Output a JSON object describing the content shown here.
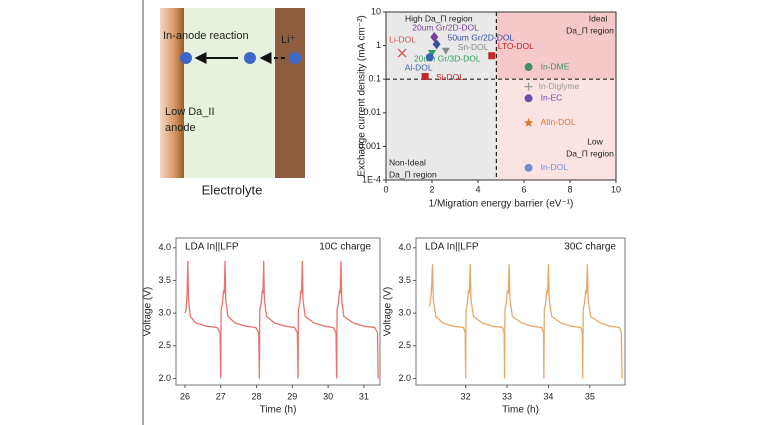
{
  "schematic": {
    "reaction_label": "In-anode reaction",
    "ion_label": "Li⁺",
    "anode_label": [
      "Low Da_II",
      "anode"
    ],
    "electrolyte_label": "Electrolyte"
  },
  "chart_data": [
    {
      "type": "scatter",
      "xlabel": "1/Migration energy barrier (eV⁻¹)",
      "ylabel": "Exchange current density (mA cm⁻²)",
      "xlim": [
        0,
        10
      ],
      "xticks": [
        0,
        2,
        4,
        6,
        8,
        10
      ],
      "ylim": [
        0.0001,
        10
      ],
      "yscale": "log",
      "yticks": [
        {
          "value": 0.0001,
          "label": "1E-4"
        },
        0.001,
        0.01,
        0.1,
        1,
        10
      ],
      "reference_lines": {
        "x": 4.8,
        "y": 0.1
      },
      "annotations": [
        "High Da_Π region",
        "Ideal",
        "Da_Π region",
        "Low",
        "Da_Π region",
        "Non-Ideal",
        "Da_Π region"
      ],
      "series": [
        {
          "name": "Li-DOL",
          "color": "#d9534f",
          "marker": "x",
          "x": [
            0.7
          ],
          "y": [
            0.6
          ]
        },
        {
          "name": "20um Gr/2D-DOL",
          "color": "#7b3fa0",
          "marker": "diamond",
          "x": [
            2.1
          ],
          "y": [
            1.8
          ]
        },
        {
          "name": "50um Gr/2D-DOL",
          "color": "#3a4fa0",
          "marker": "diamond",
          "x": [
            2.2
          ],
          "y": [
            1.1
          ]
        },
        {
          "name": "Sn-DOL",
          "color": "#8a8a8a",
          "marker": "triangle",
          "x": [
            2.6
          ],
          "y": [
            0.7
          ]
        },
        {
          "name": "20um Gr/3D-DOL",
          "color": "#2e9e5e",
          "marker": "triangle",
          "x": [
            2.0
          ],
          "y": [
            0.6
          ]
        },
        {
          "name": "Al-DOL",
          "color": "#3a63b8",
          "marker": "circle",
          "x": [
            1.9
          ],
          "y": [
            0.45
          ]
        },
        {
          "name": "Si-DOL",
          "color": "#c0282d",
          "marker": "square",
          "x": [
            1.7
          ],
          "y": [
            0.12
          ]
        },
        {
          "name": "LTO-DOL",
          "color": "#c0282d",
          "marker": "square",
          "x": [
            4.6
          ],
          "y": [
            0.5
          ]
        },
        {
          "name": "In-DME",
          "color": "#3f8f6a",
          "marker": "circle",
          "x": [
            6.2
          ],
          "y": [
            0.23
          ]
        },
        {
          "name": "In-Diglyme",
          "color": "#9a9a9a",
          "marker": "plus",
          "x": [
            6.2
          ],
          "y": [
            0.06
          ]
        },
        {
          "name": "In-EC",
          "color": "#6a4fb0",
          "marker": "circle",
          "x": [
            6.2
          ],
          "y": [
            0.027
          ]
        },
        {
          "name": "AlIn-DOL",
          "color": "#d9772b",
          "marker": "star",
          "x": [
            6.2
          ],
          "y": [
            0.005
          ]
        },
        {
          "name": "In-DOL",
          "color": "#6f8fcf",
          "marker": "circle",
          "x": [
            6.2
          ],
          "y": [
            0.00023
          ]
        }
      ]
    },
    {
      "type": "line",
      "xlabel": "Time (h)",
      "ylabel": "Voltage (V)",
      "annotations": [
        "LDA In||LFP",
        "10C charge"
      ],
      "color": "#e8736c",
      "xlim": [
        25.75,
        31.45
      ],
      "xticks": [
        26,
        27,
        28,
        29,
        30,
        31
      ],
      "ylim": [
        1.9,
        4.15
      ],
      "yticks": [
        {
          "value": 2,
          "label": "2.0"
        },
        2.5,
        {
          "value": 3,
          "label": "3.0"
        },
        3.5,
        {
          "value": 4,
          "label": "4.0"
        }
      ],
      "x": [
        26.0,
        26.03,
        26.06,
        26.08,
        26.1,
        26.15,
        26.3,
        26.6,
        26.9,
        26.98,
        27.0,
        27.01,
        27.05,
        27.08,
        27.1,
        27.12,
        27.14,
        27.2,
        27.4,
        27.7,
        27.98,
        28.06,
        28.08,
        28.09,
        28.13,
        28.16,
        28.18,
        28.2,
        28.22,
        28.28,
        28.5,
        28.8,
        29.06,
        29.14,
        29.16,
        29.17,
        29.21,
        29.24,
        29.26,
        29.28,
        29.3,
        29.36,
        29.6,
        29.9,
        30.14,
        30.22,
        30.24,
        30.25,
        30.29,
        30.32,
        30.34,
        30.36,
        30.38,
        30.44,
        30.7,
        31.0,
        31.3,
        31.38,
        31.4
      ],
      "values": [
        3.0,
        3.05,
        3.3,
        3.8,
        3.2,
        2.95,
        2.85,
        2.8,
        2.78,
        2.7,
        2.0,
        3.05,
        3.15,
        3.35,
        3.3,
        3.8,
        3.2,
        2.95,
        2.85,
        2.8,
        2.78,
        2.7,
        2.0,
        3.05,
        3.15,
        3.35,
        3.3,
        3.8,
        3.2,
        2.95,
        2.85,
        2.8,
        2.78,
        2.7,
        2.0,
        3.05,
        3.15,
        3.35,
        3.3,
        3.8,
        3.2,
        2.95,
        2.85,
        2.8,
        2.78,
        2.7,
        2.0,
        3.05,
        3.15,
        3.35,
        3.3,
        3.8,
        3.2,
        2.95,
        2.85,
        2.8,
        2.78,
        2.7,
        2.0
      ]
    },
    {
      "type": "line",
      "xlabel": "Time (h)",
      "ylabel": "Voltage (V)",
      "annotations": [
        "LDA In||LFP",
        "30C charge"
      ],
      "color": "#e8a86a",
      "xlim": [
        30.8,
        35.85
      ],
      "xticks": [
        32,
        33,
        34,
        35
      ],
      "ylim": [
        1.9,
        4.15
      ],
      "yticks": [
        {
          "value": 2,
          "label": "2.0"
        },
        2.5,
        {
          "value": 3,
          "label": "3.0"
        },
        3.5,
        {
          "value": 4,
          "label": "4.0"
        }
      ],
      "x": [
        31.13,
        31.17,
        31.2,
        31.22,
        31.28,
        31.45,
        31.7,
        31.95,
        31.99,
        32.0,
        32.01,
        32.04,
        32.07,
        32.09,
        32.11,
        32.13,
        32.19,
        32.4,
        32.65,
        32.89,
        32.93,
        32.94,
        32.95,
        32.98,
        33.01,
        33.03,
        33.05,
        33.07,
        33.13,
        33.35,
        33.6,
        33.84,
        33.88,
        33.89,
        33.9,
        33.93,
        33.96,
        33.98,
        34.0,
        34.02,
        34.08,
        34.3,
        34.55,
        34.78,
        34.82,
        34.83,
        34.84,
        34.87,
        34.9,
        34.92,
        34.94,
        34.96,
        35.02,
        35.25,
        35.5,
        35.72,
        35.76,
        35.78
      ],
      "values": [
        3.1,
        3.3,
        3.75,
        3.2,
        2.95,
        2.85,
        2.8,
        2.78,
        2.7,
        2.0,
        3.05,
        3.15,
        3.35,
        3.3,
        3.75,
        3.2,
        2.95,
        2.85,
        2.8,
        2.78,
        2.7,
        2.0,
        3.05,
        3.15,
        3.35,
        3.3,
        3.75,
        3.2,
        2.95,
        2.85,
        2.8,
        2.78,
        2.7,
        2.0,
        3.05,
        3.15,
        3.35,
        3.3,
        3.75,
        3.2,
        2.95,
        2.85,
        2.8,
        2.78,
        2.7,
        2.0,
        3.05,
        3.15,
        3.35,
        3.3,
        3.75,
        3.2,
        2.95,
        2.85,
        2.8,
        2.78,
        2.7,
        2.0
      ]
    }
  ]
}
